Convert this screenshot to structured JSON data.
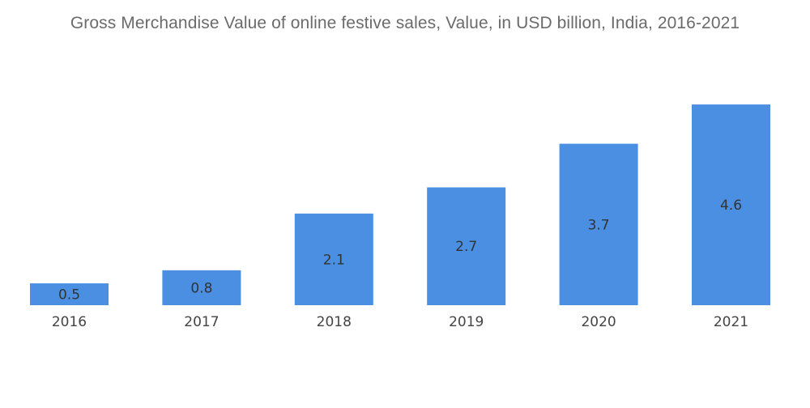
{
  "chart_data": {
    "type": "bar",
    "title": "Gross Merchandise Value of online festive sales, Value, in USD billion, India, 2016-2021",
    "categories": [
      "2016",
      "2017",
      "2018",
      "2019",
      "2020",
      "2021"
    ],
    "values": [
      0.5,
      0.8,
      2.1,
      2.7,
      3.7,
      4.6
    ],
    "data_labels": [
      "0.5",
      "0.8",
      "2.1",
      "2.7",
      "3.7",
      "4.6"
    ],
    "xlabel": "",
    "ylabel": "",
    "ylim": [
      0,
      4.6
    ],
    "grid": false,
    "legend": "none",
    "bar_color": "#4a8fe2"
  }
}
